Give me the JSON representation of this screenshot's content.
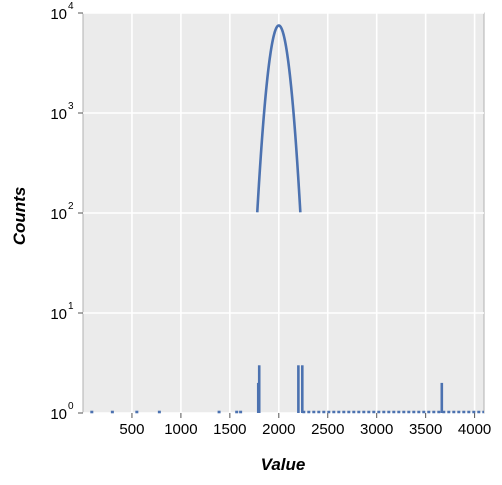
{
  "chart_data": {
    "type": "line",
    "xlabel": "Value",
    "ylabel": "Counts",
    "xlim": [
      0,
      4096
    ],
    "ylim": [
      1,
      10000
    ],
    "yscale": "log",
    "grid": true,
    "line_color": "#4c72b0",
    "plot_bg": "#ebebeb",
    "x_ticks": [
      500,
      1000,
      1500,
      2000,
      2500,
      3000,
      3500,
      4000
    ],
    "x_tick_labels": [
      "500",
      "1000",
      "1500",
      "2000",
      "2500",
      "3000",
      "3500",
      "4000"
    ],
    "y_ticks": [
      1,
      10,
      100,
      1000,
      10000
    ],
    "y_tick_base": "10",
    "y_tick_exponents": [
      "0",
      "1",
      "2",
      "3",
      "4"
    ],
    "peak": {
      "center": 2000,
      "sigma": 75,
      "height": 7500
    },
    "isolated_counts": [
      {
        "x": 90,
        "y": 1
      },
      {
        "x": 300,
        "y": 1
      },
      {
        "x": 550,
        "y": 1
      },
      {
        "x": 780,
        "y": 1
      },
      {
        "x": 1390,
        "y": 1
      },
      {
        "x": 1570,
        "y": 1
      },
      {
        "x": 1610,
        "y": 1
      },
      {
        "x": 1790,
        "y": 2
      },
      {
        "x": 1800,
        "y": 3
      },
      {
        "x": 2200,
        "y": 3
      },
      {
        "x": 2240,
        "y": 3
      },
      {
        "x": 3665,
        "y": 2
      }
    ],
    "tail_range": [
      2240,
      4096
    ]
  }
}
